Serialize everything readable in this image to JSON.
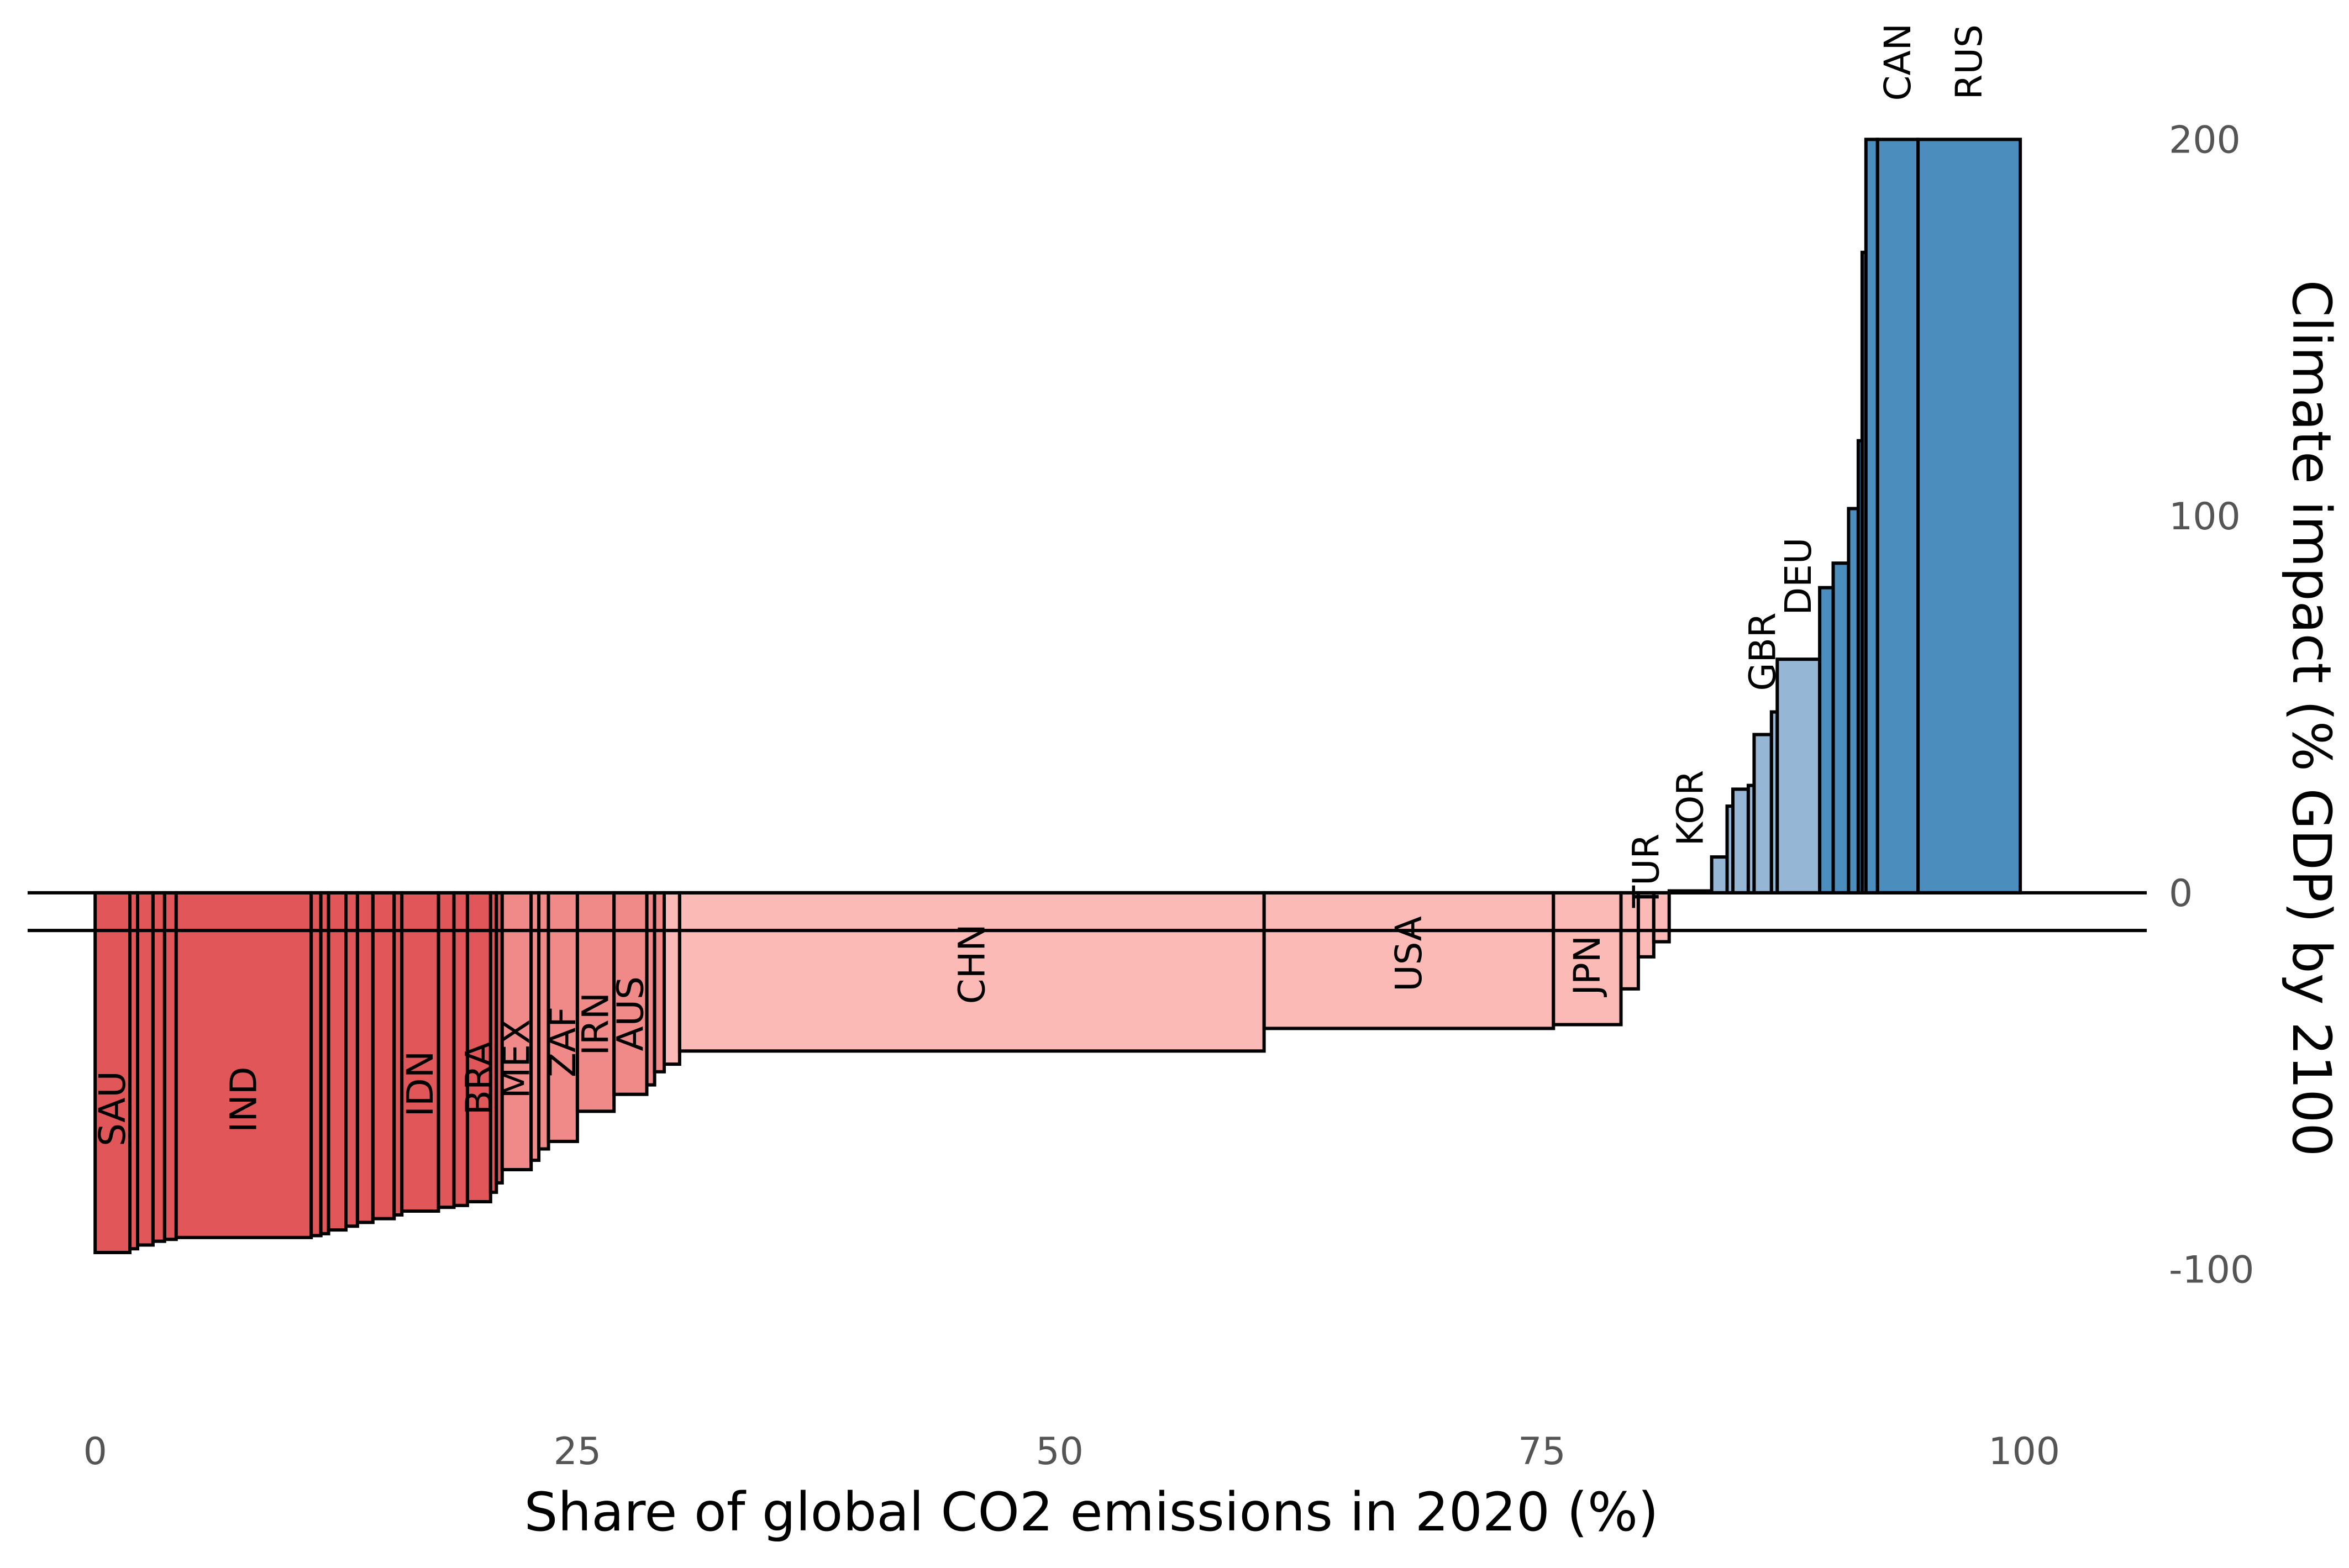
{
  "chart_data": {
    "type": "bar",
    "xlabel": "Share of global CO2 emissions in 2020 (%)",
    "ylabel": "Climate impact (% GDP) by 2100",
    "xlim": [
      -3.5,
      106.5
    ],
    "ylim": [
      -137,
      237
    ],
    "xticks": [
      0,
      25,
      50,
      75,
      100
    ],
    "yticks": [
      -100,
      0,
      100,
      200
    ],
    "y_axis_position": "right",
    "grid": false,
    "reference_lines": [
      0,
      -10
    ],
    "colors": {
      "strong_negative": "#e15759",
      "negative": "#f08a88",
      "weak_negative": "#fbbab6",
      "weak_positive": "#96b6d6",
      "positive": "#4b8dbd",
      "outline": "#000000"
    },
    "bars": [
      {
        "label": "SAU",
        "start": 0.0,
        "end": 1.8,
        "value": -95.5,
        "color": "#e15759"
      },
      {
        "label": "",
        "start": 1.8,
        "end": 2.2,
        "value": -94.5,
        "color": "#e15759"
      },
      {
        "label": "",
        "start": 2.2,
        "end": 3.0,
        "value": -93.5,
        "color": "#e15759"
      },
      {
        "label": "",
        "start": 3.0,
        "end": 3.6,
        "value": -92.5,
        "color": "#e15759"
      },
      {
        "label": "",
        "start": 3.6,
        "end": 4.2,
        "value": -92.0,
        "color": "#e15759"
      },
      {
        "label": "IND",
        "start": 4.2,
        "end": 11.2,
        "value": -91.5,
        "color": "#e15759"
      },
      {
        "label": "",
        "start": 11.2,
        "end": 11.7,
        "value": -91.0,
        "color": "#e15759"
      },
      {
        "label": "",
        "start": 11.7,
        "end": 12.1,
        "value": -90.5,
        "color": "#e15759"
      },
      {
        "label": "",
        "start": 12.1,
        "end": 13.0,
        "value": -89.5,
        "color": "#e15759"
      },
      {
        "label": "",
        "start": 13.0,
        "end": 13.6,
        "value": -88.5,
        "color": "#e15759"
      },
      {
        "label": "",
        "start": 13.6,
        "end": 14.4,
        "value": -87.5,
        "color": "#e15759"
      },
      {
        "label": "",
        "start": 14.4,
        "end": 15.5,
        "value": -86.5,
        "color": "#e15759"
      },
      {
        "label": "",
        "start": 15.5,
        "end": 15.9,
        "value": -85.5,
        "color": "#e15759"
      },
      {
        "label": "IDN",
        "start": 15.9,
        "end": 17.8,
        "value": -84.5,
        "color": "#e15759"
      },
      {
        "label": "",
        "start": 17.8,
        "end": 18.6,
        "value": -83.5,
        "color": "#e15759"
      },
      {
        "label": "",
        "start": 18.6,
        "end": 19.3,
        "value": -83.0,
        "color": "#e15759"
      },
      {
        "label": "BRA",
        "start": 19.3,
        "end": 20.5,
        "value": -82.0,
        "color": "#e15759"
      },
      {
        "label": "",
        "start": 20.5,
        "end": 20.8,
        "value": -79.5,
        "color": "#e15759"
      },
      {
        "label": "",
        "start": 20.8,
        "end": 21.1,
        "value": -77.0,
        "color": "#e15759"
      },
      {
        "label": "MEX",
        "start": 21.1,
        "end": 22.6,
        "value": -73.5,
        "color": "#f08a88"
      },
      {
        "label": "",
        "start": 22.6,
        "end": 23.0,
        "value": -71.0,
        "color": "#f08a88"
      },
      {
        "label": "",
        "start": 23.0,
        "end": 23.5,
        "value": -68.0,
        "color": "#f08a88"
      },
      {
        "label": "ZAF",
        "start": 23.5,
        "end": 25.0,
        "value": -66.0,
        "color": "#f08a88"
      },
      {
        "label": "IRN",
        "start": 25.0,
        "end": 26.9,
        "value": -58.0,
        "color": "#f08a88"
      },
      {
        "label": "AUS",
        "start": 26.9,
        "end": 28.6,
        "value": -53.5,
        "color": "#f08a88"
      },
      {
        "label": "",
        "start": 28.6,
        "end": 29.0,
        "value": -51.0,
        "color": "#f08a88"
      },
      {
        "label": "",
        "start": 29.0,
        "end": 29.5,
        "value": -47.5,
        "color": "#f08a88"
      },
      {
        "label": "",
        "start": 29.5,
        "end": 30.3,
        "value": -45.5,
        "color": "#fbbab6"
      },
      {
        "label": "CHN",
        "start": 30.3,
        "end": 60.6,
        "value": -42.0,
        "color": "#fbbab6"
      },
      {
        "label": "USA",
        "start": 60.6,
        "end": 75.6,
        "value": -36.0,
        "color": "#fbbab6"
      },
      {
        "label": "JPN",
        "start": 75.6,
        "end": 79.1,
        "value": -35.0,
        "color": "#fbbab6"
      },
      {
        "label": "",
        "start": 79.1,
        "end": 80.0,
        "value": -25.5,
        "color": "#fbbab6"
      },
      {
        "label": "TUR",
        "start": 80.0,
        "end": 80.8,
        "value": -17.0,
        "color": "#fbbab6"
      },
      {
        "label": "",
        "start": 80.8,
        "end": 81.6,
        "value": -13.0,
        "color": "#fbbab6"
      },
      {
        "label": "KOR",
        "start": 81.6,
        "end": 83.8,
        "value": 0.5,
        "color": "#96b6d6"
      },
      {
        "label": "",
        "start": 83.8,
        "end": 84.6,
        "value": 9.5,
        "color": "#96b6d6"
      },
      {
        "label": "",
        "start": 84.6,
        "end": 84.9,
        "value": 23.0,
        "color": "#96b6d6"
      },
      {
        "label": "",
        "start": 84.9,
        "end": 85.7,
        "value": 27.5,
        "color": "#96b6d6"
      },
      {
        "label": "",
        "start": 85.7,
        "end": 86.0,
        "value": 28.5,
        "color": "#96b6d6"
      },
      {
        "label": "GBR",
        "start": 86.0,
        "end": 86.9,
        "value": 42.0,
        "color": "#96b6d6"
      },
      {
        "label": "",
        "start": 86.9,
        "end": 87.2,
        "value": 48.0,
        "color": "#96b6d6"
      },
      {
        "label": "DEU",
        "start": 87.2,
        "end": 89.4,
        "value": 62.0,
        "color": "#96b6d6"
      },
      {
        "label": "",
        "start": 89.4,
        "end": 90.1,
        "value": 81.0,
        "color": "#4b8dbd"
      },
      {
        "label": "",
        "start": 90.1,
        "end": 90.9,
        "value": 87.5,
        "color": "#4b8dbd"
      },
      {
        "label": "",
        "start": 90.9,
        "end": 91.4,
        "value": 102.0,
        "color": "#4b8dbd"
      },
      {
        "label": "",
        "start": 91.4,
        "end": 91.6,
        "value": 120.0,
        "color": "#4b8dbd"
      },
      {
        "label": "",
        "start": 91.6,
        "end": 91.8,
        "value": 170.0,
        "color": "#4b8dbd"
      },
      {
        "label": "",
        "start": 91.8,
        "end": 92.4,
        "value": 200.0,
        "color": "#4b8dbd"
      },
      {
        "label": "CAN",
        "start": 92.4,
        "end": 94.5,
        "value": 200.0,
        "color": "#4b8dbd"
      },
      {
        "label": "RUS",
        "start": 94.5,
        "end": 99.8,
        "value": 200.0,
        "color": "#4b8dbd"
      }
    ]
  }
}
